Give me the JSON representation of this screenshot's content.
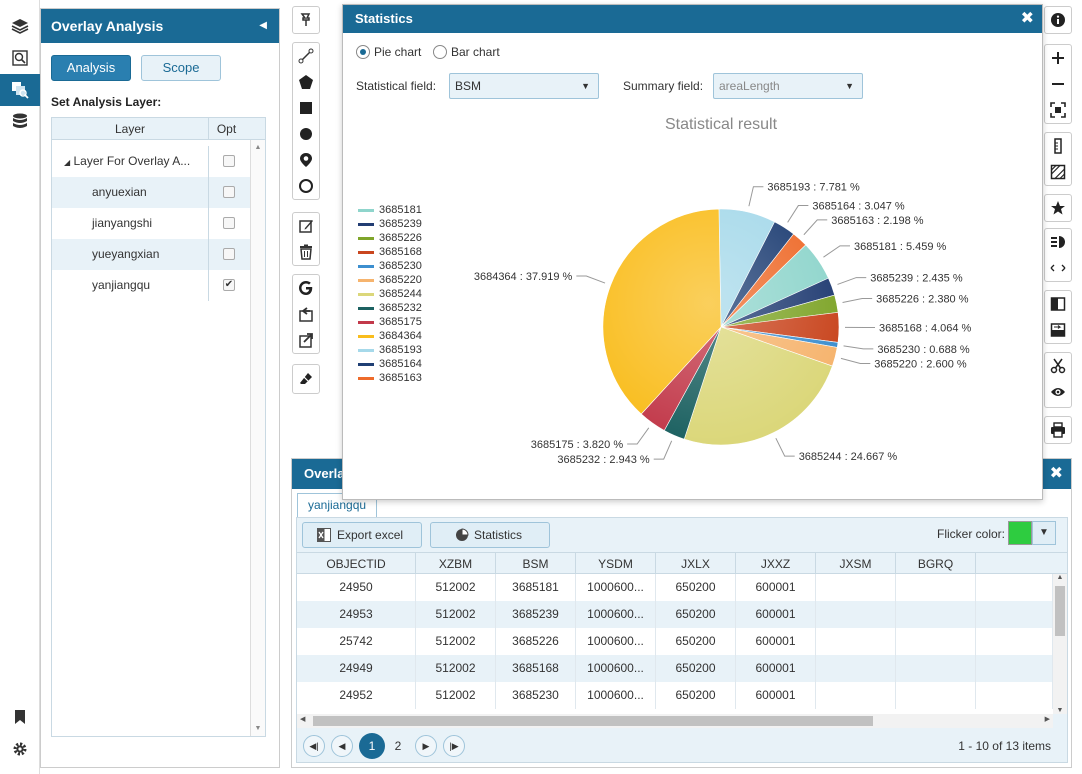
{
  "rail": {
    "icons": [
      "layers-icon",
      "search-map-icon",
      "overlay-analysis-icon",
      "database-icon",
      "bookmark-icon",
      "gear-icon"
    ]
  },
  "overlay_panel": {
    "title": "Overlay Analysis",
    "tabs": {
      "analysis": "Analysis",
      "scope": "Scope"
    },
    "set_layer_label": "Set Analysis Layer:",
    "columns": {
      "layer": "Layer",
      "opt": "Opt"
    },
    "group": {
      "name": "Layer For Overlay A...",
      "checked": false
    },
    "layers": [
      {
        "name": "anyuexian",
        "checked": false
      },
      {
        "name": "jianyangshi",
        "checked": false
      },
      {
        "name": "yueyangxian",
        "checked": false
      },
      {
        "name": "yanjiangqu",
        "checked": true
      }
    ]
  },
  "statistics": {
    "title": "Statistics",
    "chart_types": {
      "pie": "Pie chart",
      "bar": "Bar chart",
      "selected": "pie"
    },
    "statistical_field_label": "Statistical field:",
    "statistical_field_value": "BSM",
    "summary_field_label": "Summary field:",
    "summary_field_value": "areaLength"
  },
  "chart_data": {
    "type": "pie",
    "title": "Statistical result",
    "legend_placement": "left",
    "slices": [
      {
        "label": "3685193",
        "percent": 7.781,
        "color": "#a6d9ea",
        "text": "3685193 : 7.781 %"
      },
      {
        "label": "3685164",
        "percent": 3.047,
        "color": "#1f3f74",
        "text": "3685164 : 3.047 %"
      },
      {
        "label": "3685163",
        "percent": 2.198,
        "color": "#ee6b2b",
        "text": "3685163 : 2.198 %"
      },
      {
        "label": "3685181",
        "percent": 5.459,
        "color": "#8fd5cc",
        "text": "3685181 : 5.459 %"
      },
      {
        "label": "3685239",
        "percent": 2.435,
        "color": "#223d73",
        "text": "3685239 : 2.435 %"
      },
      {
        "label": "3685226",
        "percent": 2.38,
        "color": "#7fa52a",
        "text": "3685226 : 2.380 %"
      },
      {
        "label": "3685168",
        "percent": 4.064,
        "color": "#c9461f",
        "text": "3685168 : 4.064 %"
      },
      {
        "label": "3685230",
        "percent": 0.688,
        "color": "#3d8fcf",
        "text": "3685230 : 0.688 %"
      },
      {
        "label": "3685220",
        "percent": 2.6,
        "color": "#f6b46e",
        "text": "3685220 : 2.600 %"
      },
      {
        "label": "3685244",
        "percent": 24.667,
        "color": "#dbd77a",
        "text": "3685244 : 24.667 %"
      },
      {
        "label": "3685232",
        "percent": 2.943,
        "color": "#1c6161",
        "text": "3685232 : 2.943 %"
      },
      {
        "label": "3685175",
        "percent": 3.82,
        "color": "#c2394a",
        "text": "3685175 : 3.820 %"
      },
      {
        "label": "3684364",
        "percent": 37.919,
        "color": "#f9bd1d",
        "text": "3684364 : 37.919 %"
      }
    ],
    "legend": [
      {
        "label": "3685181",
        "color": "#8fd5cc"
      },
      {
        "label": "3685239",
        "color": "#223d73"
      },
      {
        "label": "3685226",
        "color": "#7fa52a"
      },
      {
        "label": "3685168",
        "color": "#c9461f"
      },
      {
        "label": "3685230",
        "color": "#3d8fcf"
      },
      {
        "label": "3685220",
        "color": "#f6b46e"
      },
      {
        "label": "3685244",
        "color": "#dbd77a"
      },
      {
        "label": "3685232",
        "color": "#1c6161"
      },
      {
        "label": "3685175",
        "color": "#c2394a"
      },
      {
        "label": "3684364",
        "color": "#f9bd1d"
      },
      {
        "label": "3685193",
        "color": "#a6d9ea"
      },
      {
        "label": "3685164",
        "color": "#1f3f74"
      },
      {
        "label": "3685163",
        "color": "#ee6b2b"
      }
    ]
  },
  "grid_dialog": {
    "title": "Overlay",
    "tab": "yanjiangqu",
    "export_label": "Export excel",
    "statistics_label": "Statistics",
    "flicker_label": "Flicker color:",
    "flicker_color": "#2ecc40",
    "columns": [
      "OBJECTID",
      "XZBM",
      "BSM",
      "YSDM",
      "JXLX",
      "JXXZ",
      "JXSM",
      "BGRQ",
      ""
    ],
    "rows": [
      [
        "24950",
        "512002",
        "3685181",
        "1000600...",
        "650200",
        "600001",
        "",
        "",
        ""
      ],
      [
        "24953",
        "512002",
        "3685239",
        "1000600...",
        "650200",
        "600001",
        "",
        "",
        ""
      ],
      [
        "25742",
        "512002",
        "3685226",
        "1000600...",
        "650200",
        "600001",
        "",
        "",
        ""
      ],
      [
        "24949",
        "512002",
        "3685168",
        "1000600...",
        "650200",
        "600001",
        "",
        "",
        ""
      ],
      [
        "24952",
        "512002",
        "3685230",
        "1000600...",
        "650200",
        "600001",
        "",
        "",
        ""
      ]
    ],
    "pages": [
      "1",
      "2"
    ],
    "current_page": "1",
    "page_info": "1 - 10 of 13 items"
  },
  "toolbars": {
    "vertical": [
      "pin-icon",
      "line-icon",
      "polygon-icon",
      "rectangle-icon",
      "circle-icon",
      "location-icon",
      "ring-icon",
      "edit-icon",
      "trash-icon",
      "google-icon",
      "import-icon",
      "export-icon",
      "eraser-icon"
    ],
    "right": [
      "info-icon",
      "zoom-in-icon",
      "zoom-out-icon",
      "full-extent-icon",
      "ruler-icon",
      "area-measure-icon",
      "star-icon",
      "legend-icon",
      "swipe-icon",
      "compare-icon",
      "split-icon",
      "cut-icon",
      "eye-icon",
      "print-icon"
    ]
  }
}
